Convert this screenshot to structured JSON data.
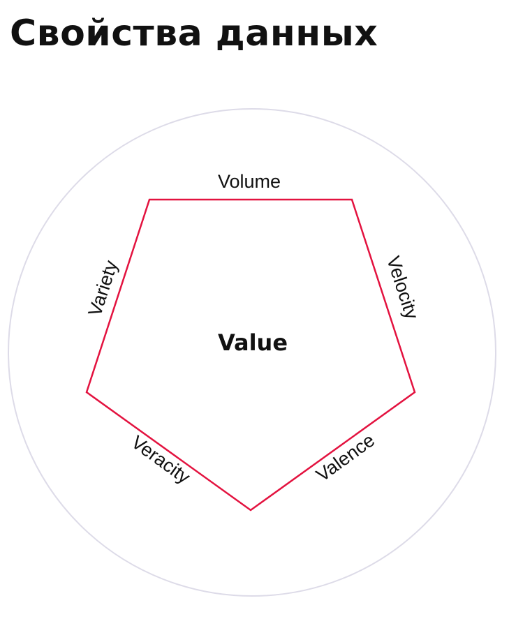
{
  "title": "Свойства данных",
  "diagram": {
    "center": "Value",
    "edges": {
      "top": "Volume",
      "upper_right": "Velocity",
      "lower_right": "Valence",
      "lower_left": "Veracity",
      "upper_left": "Variety"
    },
    "colors": {
      "circle": "#dddbe8",
      "pentagon": "#e3123f",
      "text": "#111111"
    }
  }
}
